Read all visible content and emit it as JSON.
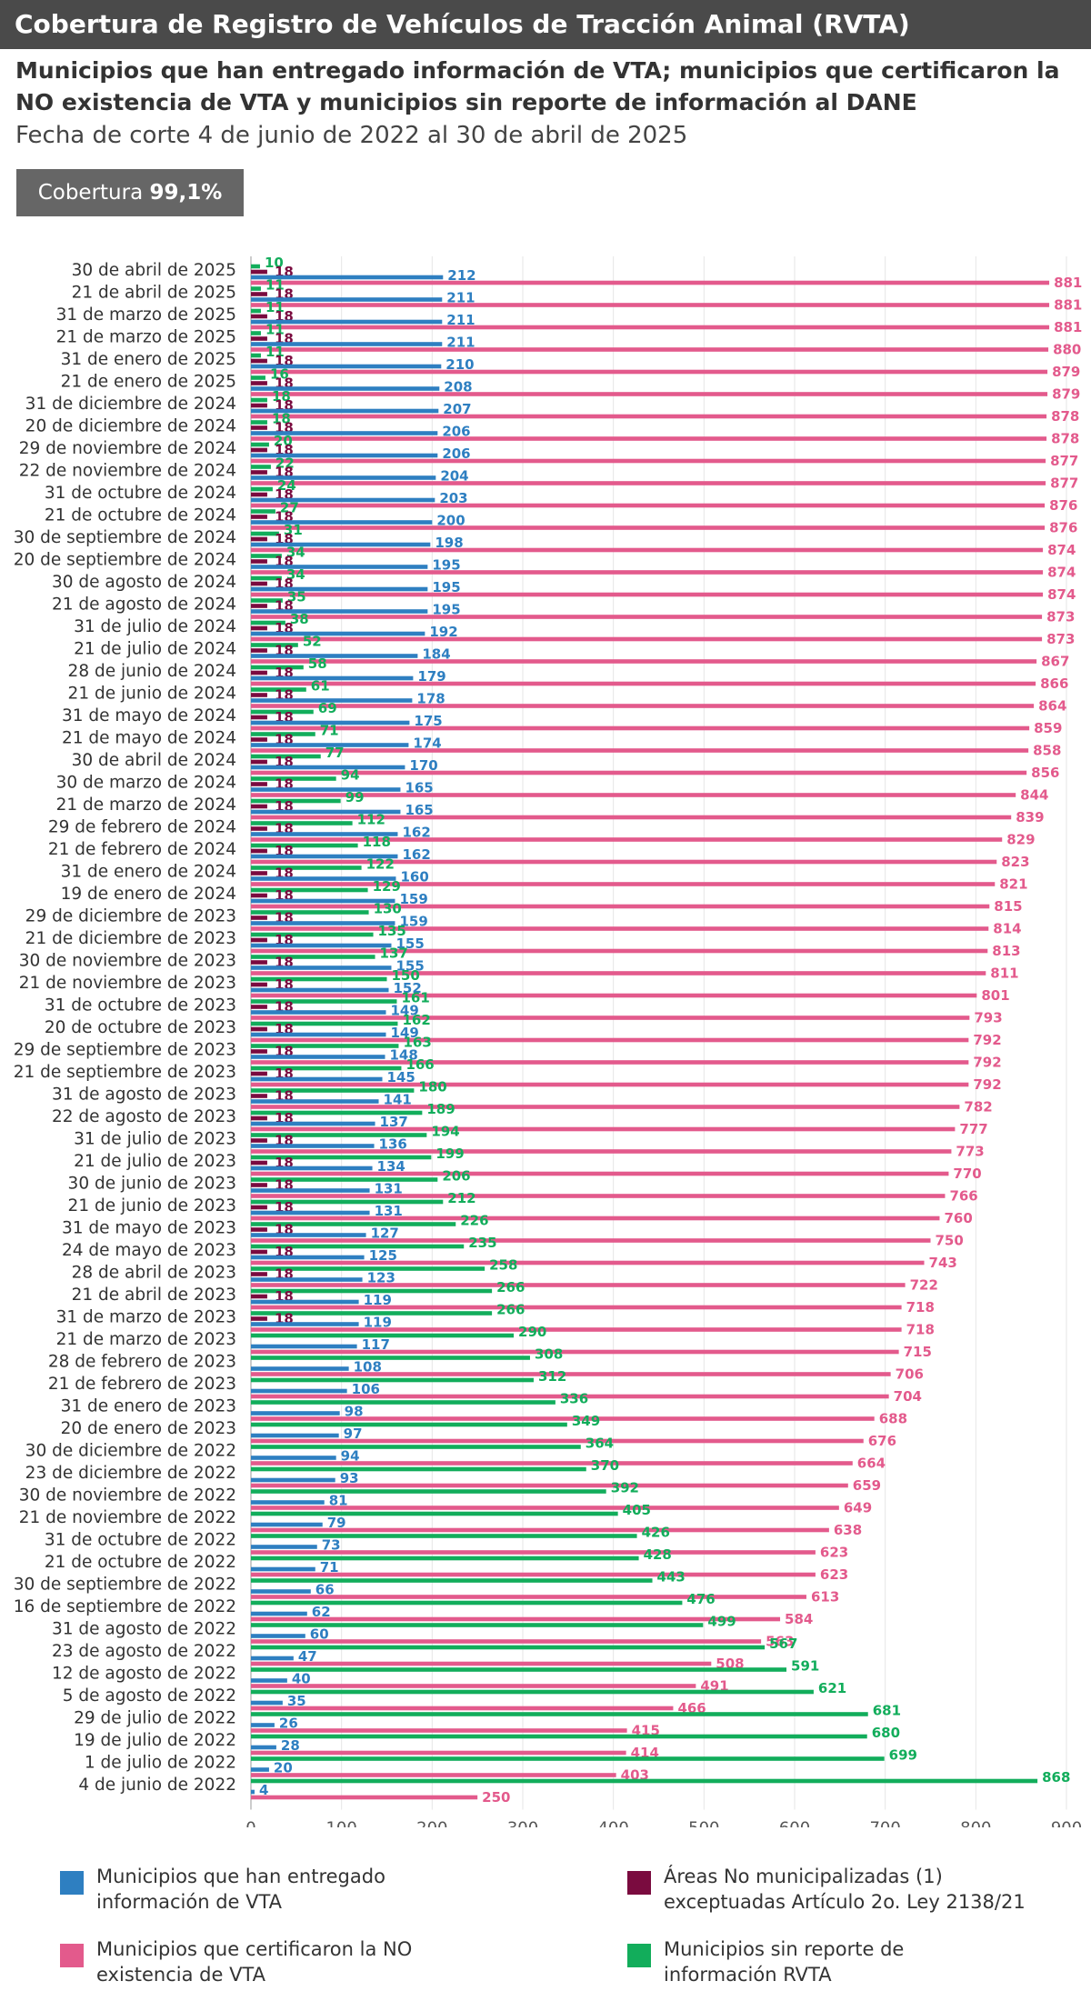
{
  "header": {
    "title": "Cobertura de Registro de Vehículos de Tracción Animal (RVTA)",
    "subtitle": "Municipios que han entregado información de VTA; municipios que certificaron la NO existencia de VTA y municipios sin reporte de información al DANE",
    "cut_date": "Fecha de corte 4 de junio de 2022 al 30 de abril de 2025",
    "coverage_label": "Cobertura",
    "coverage_value": "99,1%"
  },
  "colors": {
    "entregado": "#2e7fc1",
    "no_existencia": "#e35a8c",
    "no_municipalizadas": "#7a0b3f",
    "sin_reporte": "#12ad5b"
  },
  "chart_data": {
    "type": "bar",
    "orientation": "horizontal",
    "xlim": [
      0,
      900
    ],
    "x_ticks": [
      0,
      100,
      200,
      300,
      400,
      500,
      600,
      700,
      800,
      900
    ],
    "grid": true,
    "legend_position": "bottom",
    "categories": [
      "30 de abril de 2025",
      "21 de abril de 2025",
      "31 de marzo de 2025",
      "21 de marzo de 2025",
      "31 de enero de 2025",
      "21 de enero de 2025",
      "31 de diciembre de 2024",
      "20 de diciembre de 2024",
      "29 de noviembre de 2024",
      "22 de noviembre de 2024",
      "31 de octubre de 2024",
      "21 de octubre de 2024",
      "30 de septiembre de 2024",
      "20 de septiembre de 2024",
      "30 de agosto de 2024",
      "21 de agosto de 2024",
      "31 de julio de 2024",
      "21 de julio de 2024",
      "28 de junio de 2024",
      "21 de junio de 2024",
      "31 de mayo de 2024",
      "21 de mayo de 2024",
      "30 de abril de 2024",
      "30 de marzo de 2024",
      "21 de marzo de 2024",
      "29 de febrero de 2024",
      "21 de febrero de 2024",
      "31 de enero de 2024",
      "19 de enero de 2024",
      "29 de diciembre de 2023",
      "21 de diciembre de 2023",
      "30 de noviembre de 2023",
      "21 de noviembre de 2023",
      "31 de octubre de 2023",
      "20 de octubre de 2023",
      "29 de septiembre de 2023",
      "21 de septiembre de 2023",
      "31 de agosto de 2023",
      "22 de agosto de 2023",
      "31 de julio de 2023",
      "21 de julio de 2023",
      "30 de junio de 2023",
      "21 de junio de 2023",
      "31 de mayo de 2023",
      "24 de mayo de 2023",
      "28 de abril de 2023",
      "21 de abril de 2023",
      "31 de marzo de 2023",
      "21 de marzo de 2023",
      "28 de febrero de 2023",
      "21 de febrero de 2023",
      "31 de enero de 2023",
      "20 de enero de 2023",
      "30 de diciembre de 2022",
      "23 de diciembre de 2022",
      "30 de noviembre de 2022",
      "21 de noviembre de 2022",
      "31 de octubre de 2022",
      "21 de octubre de 2022",
      "30 de septiembre de 2022",
      "16 de septiembre de 2022",
      "31 de agosto de 2022",
      "23 de agosto de 2022",
      "12 de agosto de 2022",
      "5 de agosto de 2022",
      "29 de julio de 2022",
      "19 de julio de 2022",
      "1 de julio de 2022",
      "4 de junio de 2022"
    ],
    "series": [
      {
        "name": "Municipios sin reporte de información RVTA",
        "color": "#12ad5b",
        "values": [
          10,
          11,
          11,
          11,
          11,
          16,
          18,
          18,
          20,
          22,
          24,
          27,
          31,
          34,
          34,
          35,
          38,
          52,
          58,
          61,
          69,
          71,
          77,
          94,
          99,
          112,
          118,
          122,
          129,
          130,
          135,
          137,
          150,
          161,
          162,
          163,
          166,
          180,
          189,
          194,
          199,
          206,
          212,
          226,
          235,
          258,
          266,
          266,
          290,
          308,
          312,
          336,
          349,
          364,
          370,
          392,
          405,
          426,
          428,
          443,
          476,
          499,
          567,
          591,
          621,
          681,
          680,
          699,
          868
        ]
      },
      {
        "name": "Áreas No municipalizadas (1) exceptuadas Artículo 2o. Ley 2138/21",
        "color": "#7a0b3f",
        "values": [
          18,
          18,
          18,
          18,
          18,
          18,
          18,
          18,
          18,
          18,
          18,
          18,
          18,
          18,
          18,
          18,
          18,
          18,
          18,
          18,
          18,
          18,
          18,
          18,
          18,
          18,
          18,
          18,
          18,
          18,
          18,
          18,
          18,
          18,
          18,
          18,
          18,
          18,
          18,
          18,
          18,
          18,
          18,
          18,
          18,
          18,
          18,
          18,
          null,
          null,
          null,
          null,
          null,
          null,
          null,
          null,
          null,
          null,
          null,
          null,
          null,
          null,
          null,
          null,
          null,
          null,
          null,
          null,
          null
        ]
      },
      {
        "name": "Municipios que han entregado información de VTA",
        "color": "#2e7fc1",
        "values": [
          212,
          211,
          211,
          211,
          210,
          208,
          207,
          206,
          206,
          204,
          203,
          200,
          198,
          195,
          195,
          195,
          192,
          184,
          179,
          178,
          175,
          174,
          170,
          165,
          165,
          162,
          162,
          160,
          159,
          159,
          155,
          155,
          152,
          149,
          149,
          148,
          145,
          141,
          137,
          136,
          134,
          131,
          131,
          127,
          125,
          123,
          119,
          119,
          117,
          108,
          106,
          98,
          97,
          94,
          93,
          81,
          79,
          73,
          71,
          66,
          62,
          60,
          47,
          40,
          35,
          26,
          28,
          20,
          4
        ]
      },
      {
        "name": "Municipios que certificaron la NO existencia de VTA",
        "color": "#e35a8c",
        "values": [
          881,
          881,
          881,
          880,
          879,
          879,
          878,
          878,
          877,
          877,
          876,
          876,
          874,
          874,
          874,
          873,
          873,
          867,
          866,
          864,
          859,
          858,
          856,
          844,
          839,
          829,
          823,
          821,
          815,
          814,
          813,
          811,
          801,
          793,
          792,
          792,
          792,
          782,
          777,
          773,
          770,
          766,
          760,
          750,
          743,
          722,
          718,
          718,
          715,
          706,
          704,
          688,
          676,
          664,
          659,
          649,
          638,
          623,
          623,
          613,
          584,
          563,
          508,
          491,
          466,
          415,
          414,
          403,
          250
        ]
      }
    ]
  },
  "legend": [
    {
      "key": "entregado",
      "label_1": "Municipios que han entregado",
      "label_2": "información de VTA"
    },
    {
      "key": "no_municipalizadas",
      "label_1": "Áreas No municipalizadas (1)",
      "label_2": "exceptuadas Artículo 2o. Ley 2138/21"
    },
    {
      "key": "no_existencia",
      "label_1": "Municipios que certificaron la NO",
      "label_2": "existencia de VTA"
    },
    {
      "key": "sin_reporte",
      "label_1": "Municipios sin reporte de",
      "label_2": "información RVTA"
    }
  ]
}
